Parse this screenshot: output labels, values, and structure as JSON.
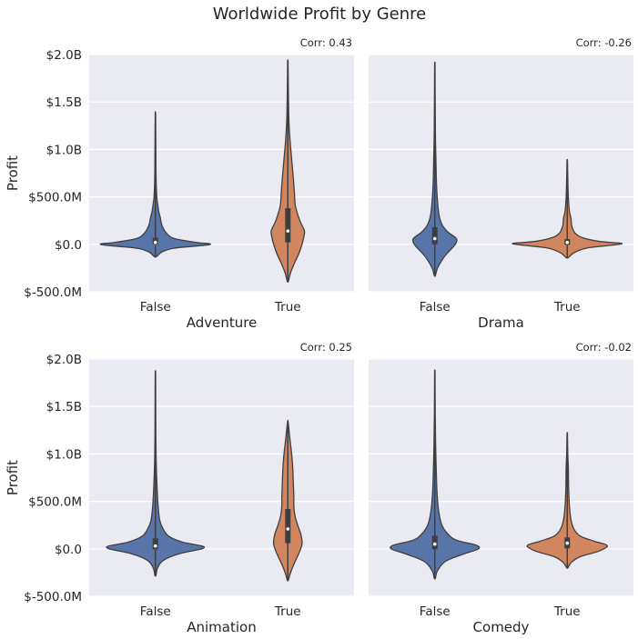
{
  "figure": {
    "title": "Worldwide Profit by Genre",
    "colors": {
      "False": "#5875a9",
      "True": "#d18660",
      "background": "#eaeaf2"
    }
  },
  "chart_data": [
    {
      "type": "violin",
      "xlabel": "Adventure",
      "ylabel": "Profit",
      "annotation": "Corr: 0.43",
      "categories": [
        "False",
        "True"
      ],
      "ylim": [
        -500000000,
        2000000000
      ],
      "yticks": [
        -500000000,
        0,
        500000000,
        1000000000,
        1500000000,
        2000000000
      ],
      "ytick_labels": [
        "$-500.0M",
        "$0.0",
        "$500.0M",
        "$1.0B",
        "$1.5B",
        "$2.0B"
      ],
      "violins": [
        {
          "category": "False",
          "min": -130000000,
          "max": 1370000000,
          "q1": 0,
          "median": 20000000,
          "q3": 70000000,
          "width_profile": [
            [
              -130000000,
              0.02
            ],
            [
              -80000000,
              0.12
            ],
            [
              -40000000,
              0.35
            ],
            [
              -10000000,
              0.9
            ],
            [
              5000000,
              1.0
            ],
            [
              20000000,
              0.75
            ],
            [
              60000000,
              0.35
            ],
            [
              120000000,
              0.2
            ],
            [
              200000000,
              0.12
            ],
            [
              280000000,
              0.09
            ],
            [
              350000000,
              0.06
            ],
            [
              430000000,
              0.04
            ],
            [
              500000000,
              0.025
            ],
            [
              700000000,
              0.012
            ],
            [
              1000000000,
              0.008
            ],
            [
              1370000000,
              0.004
            ]
          ]
        },
        {
          "category": "True",
          "min": -390000000,
          "max": 1920000000,
          "q1": 20000000,
          "median": 140000000,
          "q3": 380000000,
          "width_profile": [
            [
              -390000000,
              0.01
            ],
            [
              -300000000,
              0.05
            ],
            [
              -200000000,
              0.12
            ],
            [
              -100000000,
              0.2
            ],
            [
              0,
              0.26
            ],
            [
              100000000,
              0.3
            ],
            [
              150000000,
              0.3
            ],
            [
              250000000,
              0.22
            ],
            [
              400000000,
              0.14
            ],
            [
              550000000,
              0.12
            ],
            [
              700000000,
              0.1
            ],
            [
              900000000,
              0.07
            ],
            [
              1100000000,
              0.04
            ],
            [
              1300000000,
              0.02
            ],
            [
              1600000000,
              0.01
            ],
            [
              1920000000,
              0.004
            ]
          ]
        }
      ]
    },
    {
      "type": "violin",
      "xlabel": "Drama",
      "ylabel": "",
      "annotation": "Corr: -0.26",
      "categories": [
        "False",
        "True"
      ],
      "ylim": [
        -500000000,
        2000000000
      ],
      "violins": [
        {
          "category": "False",
          "min": -330000000,
          "max": 1870000000,
          "q1": 0,
          "median": 60000000,
          "q3": 180000000,
          "width_profile": [
            [
              -330000000,
              0.01
            ],
            [
              -250000000,
              0.05
            ],
            [
              -150000000,
              0.15
            ],
            [
              -80000000,
              0.25
            ],
            [
              -20000000,
              0.35
            ],
            [
              30000000,
              0.4
            ],
            [
              70000000,
              0.38
            ],
            [
              130000000,
              0.24
            ],
            [
              200000000,
              0.14
            ],
            [
              300000000,
              0.08
            ],
            [
              450000000,
              0.05
            ],
            [
              650000000,
              0.03
            ],
            [
              900000000,
              0.02
            ],
            [
              1200000000,
              0.01
            ],
            [
              1870000000,
              0.004
            ]
          ]
        },
        {
          "category": "True",
          "min": -140000000,
          "max": 880000000,
          "q1": -5000000,
          "median": 20000000,
          "q3": 55000000,
          "width_profile": [
            [
              -140000000,
              0.02
            ],
            [
              -90000000,
              0.12
            ],
            [
              -40000000,
              0.35
            ],
            [
              -10000000,
              0.8
            ],
            [
              10000000,
              1.0
            ],
            [
              30000000,
              0.6
            ],
            [
              70000000,
              0.28
            ],
            [
              120000000,
              0.14
            ],
            [
              200000000,
              0.08
            ],
            [
              270000000,
              0.07
            ],
            [
              350000000,
              0.04
            ],
            [
              500000000,
              0.02
            ],
            [
              700000000,
              0.01
            ],
            [
              880000000,
              0.004
            ]
          ]
        }
      ]
    },
    {
      "type": "violin",
      "xlabel": "Animation",
      "ylabel": "Profit",
      "annotation": "Corr: 0.25",
      "categories": [
        "False",
        "True"
      ],
      "ylim": [
        -500000000,
        2000000000
      ],
      "yticks": [
        -500000000,
        0,
        500000000,
        1000000000,
        1500000000,
        2000000000
      ],
      "ytick_labels": [
        "$-500.0M",
        "$0.0",
        "$500.0M",
        "$1.0B",
        "$1.5B",
        "$2.0B"
      ],
      "violins": [
        {
          "category": "False",
          "min": -280000000,
          "max": 1830000000,
          "q1": -5000000,
          "median": 30000000,
          "q3": 110000000,
          "width_profile": [
            [
              -280000000,
              0.01
            ],
            [
              -200000000,
              0.04
            ],
            [
              -120000000,
              0.15
            ],
            [
              -50000000,
              0.45
            ],
            [
              0,
              0.85
            ],
            [
              30000000,
              0.85
            ],
            [
              70000000,
              0.5
            ],
            [
              130000000,
              0.25
            ],
            [
              200000000,
              0.15
            ],
            [
              300000000,
              0.08
            ],
            [
              450000000,
              0.05
            ],
            [
              650000000,
              0.03
            ],
            [
              900000000,
              0.015
            ],
            [
              1200000000,
              0.008
            ],
            [
              1830000000,
              0.004
            ]
          ]
        },
        {
          "category": "True",
          "min": -330000000,
          "max": 1340000000,
          "q1": 60000000,
          "median": 210000000,
          "q3": 420000000,
          "width_profile": [
            [
              -330000000,
              0.01
            ],
            [
              -250000000,
              0.05
            ],
            [
              -150000000,
              0.12
            ],
            [
              -50000000,
              0.2
            ],
            [
              50000000,
              0.26
            ],
            [
              150000000,
              0.24
            ],
            [
              250000000,
              0.18
            ],
            [
              350000000,
              0.13
            ],
            [
              450000000,
              0.11
            ],
            [
              550000000,
              0.11
            ],
            [
              700000000,
              0.1
            ],
            [
              850000000,
              0.09
            ],
            [
              1000000000,
              0.07
            ],
            [
              1150000000,
              0.04
            ],
            [
              1340000000,
              0.005
            ]
          ]
        }
      ]
    },
    {
      "type": "violin",
      "xlabel": "Comedy",
      "ylabel": "",
      "annotation": "Corr: -0.02",
      "categories": [
        "False",
        "True"
      ],
      "ylim": [
        -500000000,
        2000000000
      ],
      "violins": [
        {
          "category": "False",
          "min": -310000000,
          "max": 1850000000,
          "q1": -5000000,
          "median": 50000000,
          "q3": 140000000,
          "width_profile": [
            [
              -310000000,
              0.01
            ],
            [
              -230000000,
              0.05
            ],
            [
              -130000000,
              0.2
            ],
            [
              -50000000,
              0.55
            ],
            [
              0,
              0.8
            ],
            [
              40000000,
              0.75
            ],
            [
              90000000,
              0.4
            ],
            [
              150000000,
              0.25
            ],
            [
              250000000,
              0.13
            ],
            [
              400000000,
              0.07
            ],
            [
              600000000,
              0.04
            ],
            [
              850000000,
              0.025
            ],
            [
              1100000000,
              0.015
            ],
            [
              1400000000,
              0.008
            ],
            [
              1850000000,
              0.004
            ]
          ]
        },
        {
          "category": "True",
          "min": -200000000,
          "max": 1210000000,
          "q1": 5000000,
          "median": 60000000,
          "q3": 120000000,
          "width_profile": [
            [
              -200000000,
              0.01
            ],
            [
              -140000000,
              0.08
            ],
            [
              -80000000,
              0.25
            ],
            [
              -30000000,
              0.55
            ],
            [
              10000000,
              0.7
            ],
            [
              40000000,
              0.72
            ],
            [
              80000000,
              0.5
            ],
            [
              130000000,
              0.25
            ],
            [
              200000000,
              0.13
            ],
            [
              300000000,
              0.07
            ],
            [
              450000000,
              0.04
            ],
            [
              650000000,
              0.025
            ],
            [
              850000000,
              0.02
            ],
            [
              1000000000,
              0.01
            ],
            [
              1210000000,
              0.004
            ]
          ]
        }
      ]
    }
  ]
}
